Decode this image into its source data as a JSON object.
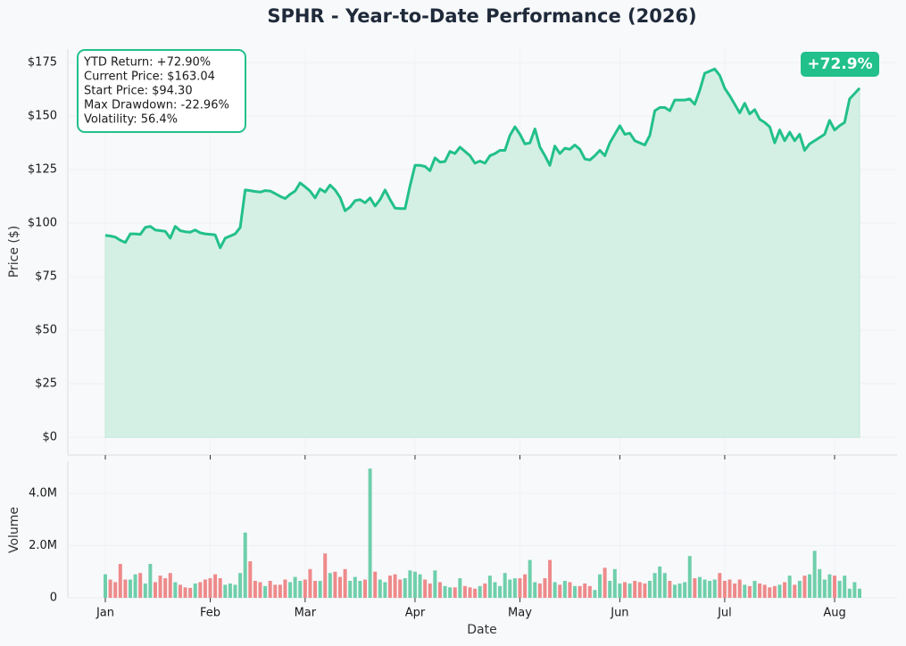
{
  "chart_data": {
    "type": "line",
    "title": "SPHR - Year-to-Date Performance (2026)",
    "xlabel": "Date",
    "ylabel": "Price ($)",
    "categories": [
      "Jan",
      null,
      null,
      null,
      null,
      null,
      null,
      null,
      null,
      null,
      null,
      null,
      null,
      null,
      null,
      null,
      null,
      null,
      null,
      null,
      null,
      "Feb",
      null,
      null,
      null,
      null,
      null,
      null,
      null,
      null,
      null,
      null,
      null,
      null,
      null,
      null,
      null,
      null,
      null,
      null,
      "Mar",
      null,
      null,
      null,
      null,
      null,
      null,
      null,
      null,
      null,
      null,
      null,
      null,
      null,
      null,
      null,
      null,
      null,
      null,
      null,
      null,
      null,
      "Apr",
      null,
      null,
      null,
      null,
      null,
      null,
      null,
      null,
      null,
      null,
      null,
      null,
      null,
      null,
      null,
      null,
      null,
      null,
      null,
      null,
      "May",
      null,
      null,
      null,
      null,
      null,
      null,
      null,
      null,
      null,
      null,
      null,
      null,
      null,
      null,
      null,
      null,
      null,
      null,
      null,
      "Jun",
      null,
      null,
      null,
      null,
      null,
      null,
      null,
      null,
      null,
      null,
      null,
      null,
      null,
      null,
      null,
      null,
      null,
      null,
      null,
      null,
      "Jul",
      null,
      null,
      null,
      null,
      null,
      null,
      null,
      null,
      null,
      null,
      null,
      null,
      null,
      null,
      null,
      null,
      null,
      null,
      null,
      null,
      null,
      "Aug",
      null,
      null,
      null,
      null,
      null
    ],
    "values": [
      94.3,
      94,
      93.5,
      92,
      91,
      95,
      95,
      94.8,
      98,
      98.5,
      96.8,
      96.5,
      96.2,
      93,
      98.5,
      96.5,
      96,
      95.8,
      96.8,
      95.5,
      95,
      94.8,
      94.5,
      88.5,
      93,
      94,
      95,
      98,
      115.5,
      115.2,
      114.8,
      114.5,
      115.2,
      115,
      113.8,
      112.5,
      111.5,
      113.5,
      115,
      118.8,
      117,
      115,
      111.8,
      116,
      114.5,
      117.8,
      115.5,
      112,
      105.8,
      107.5,
      110.5,
      111,
      109.5,
      111.8,
      108,
      111,
      115.5,
      111,
      107,
      106.8,
      106.8,
      117.5,
      127,
      127,
      126.5,
      124.5,
      130.5,
      128.5,
      128.8,
      133.5,
      132.5,
      135.5,
      133.5,
      131.5,
      128,
      129,
      128,
      131.5,
      132.5,
      134,
      134,
      141,
      145,
      141.5,
      137,
      137.5,
      144,
      135.5,
      131.5,
      127,
      136,
      132.5,
      135,
      134.5,
      136.5,
      134.5,
      130,
      129.5,
      131.5,
      134,
      131.5,
      137.5,
      141.5,
      145.5,
      141.5,
      142,
      138.5,
      137.5,
      136.5,
      141,
      152.5,
      154,
      154,
      152.5,
      157.5,
      157.5,
      157.5,
      158,
      155.5,
      162,
      170,
      171,
      172,
      169,
      163,
      159.5,
      155.5,
      151.5,
      156,
      151,
      153,
      148.5,
      147,
      145,
      137.5,
      143.5,
      138.5,
      142.5,
      138.5,
      141.5,
      134,
      137,
      138.5,
      140,
      141.5,
      148,
      143.5,
      145.5,
      147,
      158,
      160.5,
      163.04
    ],
    "color": "#22c08a",
    "area_color": "#d4f0e5",
    "grid": true,
    "ylim": [
      -8.3,
      181.3
    ],
    "yticks": [
      {
        "value": 0,
        "label": "$0"
      },
      {
        "value": 25,
        "label": "$25"
      },
      {
        "value": 50,
        "label": "$50"
      },
      {
        "value": 75,
        "label": "$75"
      },
      {
        "value": 100,
        "label": "$100"
      },
      {
        "value": 125,
        "label": "$125"
      },
      {
        "value": 150,
        "label": "$150"
      },
      {
        "value": 175,
        "label": "$175"
      }
    ],
    "annotations": [
      "YTD Return: +72.90%",
      "Current Price: $163.04",
      "Start Price: $94.30",
      "Max Drawdown: -22.96%",
      "Volatility: 56.4%"
    ],
    "badge": "+72.9%",
    "volume": {
      "type": "bar",
      "ylabel": "Volume",
      "up_color": "#6fcfab",
      "down_color": "#ee8a8a",
      "ylim": [
        0,
        5230000
      ],
      "yticks": [
        0,
        {
          "value": 2000000,
          "label": "2.0M"
        },
        {
          "value": 4000000,
          "label": "4.0M"
        }
      ],
      "values": [
        900000,
        700000,
        600000,
        1300000,
        700000,
        700000,
        900000,
        950000,
        550000,
        1300000,
        600000,
        850000,
        750000,
        950000,
        600000,
        500000,
        400000,
        380000,
        550000,
        600000,
        700000,
        750000,
        900000,
        750000,
        500000,
        550000,
        500000,
        950000,
        2500000,
        1400000,
        650000,
        600000,
        450000,
        650000,
        500000,
        500000,
        700000,
        600000,
        800000,
        650000,
        700000,
        1100000,
        650000,
        650000,
        1700000,
        950000,
        1000000,
        800000,
        1100000,
        650000,
        800000,
        650000,
        700000,
        4950000,
        1000000,
        700000,
        600000,
        850000,
        900000,
        700000,
        750000,
        1050000,
        1000000,
        900000,
        700000,
        550000,
        1050000,
        600000,
        450000,
        400000,
        400000,
        750000,
        450000,
        400000,
        350000,
        450000,
        550000,
        850000,
        600000,
        450000,
        950000,
        700000,
        750000,
        750000,
        900000,
        1450000,
        600000,
        550000,
        750000,
        1450000,
        600000,
        500000,
        650000,
        600000,
        450000,
        450000,
        550000,
        450000,
        300000,
        900000,
        1150000,
        650000,
        1100000,
        550000,
        600000,
        550000,
        650000,
        600000,
        550000,
        650000,
        950000,
        1200000,
        950000,
        650000,
        500000,
        550000,
        600000,
        1600000,
        750000,
        800000,
        700000,
        650000,
        700000,
        950000,
        650000,
        700000,
        550000,
        700000,
        500000,
        450000,
        650000,
        550000,
        500000,
        400000,
        450000,
        500000,
        600000,
        850000,
        500000,
        650000,
        850000,
        900000,
        1800000,
        1100000,
        700000,
        900000,
        850000,
        650000,
        850000,
        350000,
        600000,
        350000
      ]
    }
  }
}
